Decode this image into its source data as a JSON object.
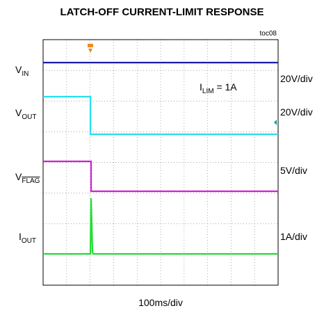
{
  "chart_data": {
    "type": "oscilloscope",
    "title": "LATCH-OFF CURRENT-LIMIT RESPONSE",
    "tag": "toc08",
    "x_label": "100ms/div",
    "annotation": {
      "main": "I",
      "sub": "LIM",
      "rest": " = 1A"
    },
    "traces": [
      {
        "main": "V",
        "sub": "IN",
        "scale": "20V/div",
        "color": "#1a1aa8"
      },
      {
        "main": "V",
        "sub": "OUT",
        "scale": "20V/div",
        "color": "#22e0f0"
      },
      {
        "main": "V",
        "sub": "FLAG",
        "scale": "5V/div",
        "color": "#d21fd2"
      },
      {
        "main": "I",
        "sub": "OUT",
        "scale": "1A/div",
        "color": "#22dd33"
      }
    ]
  }
}
